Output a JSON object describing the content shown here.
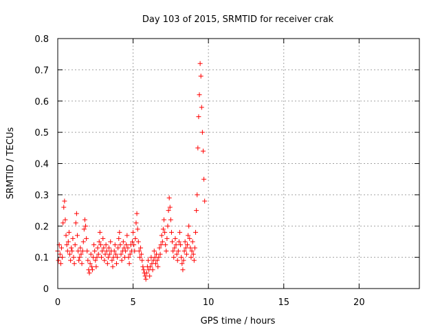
{
  "chart_data": {
    "type": "scatter",
    "title": "Day 103 of 2015, SRMTID for receiver crak",
    "xlabel": "GPS time / hours",
    "ylabel": "SRMTID / TECUs",
    "xlim": [
      0,
      24
    ],
    "ylim": [
      0,
      0.8
    ],
    "xticks": [
      0,
      5,
      10,
      15,
      20
    ],
    "yticks": [
      0,
      0.1,
      0.2,
      0.3,
      0.4,
      0.5,
      0.6,
      0.7,
      0.8
    ],
    "xtick_labels": [
      "0",
      "5",
      "10",
      "15",
      "20"
    ],
    "ytick_labels": [
      "0",
      "0.1",
      "0.2",
      "0.3",
      "0.4",
      "0.5",
      "0.6",
      "0.7",
      "0.8"
    ],
    "grid": true,
    "marker": "+",
    "marker_color": "#ff0000",
    "series": [
      {
        "name": "SRMTID",
        "points": [
          [
            0.0,
            0.12
          ],
          [
            0.05,
            0.09
          ],
          [
            0.1,
            0.14
          ],
          [
            0.15,
            0.11
          ],
          [
            0.2,
            0.08
          ],
          [
            0.25,
            0.13
          ],
          [
            0.3,
            0.1
          ],
          [
            0.35,
            0.21
          ],
          [
            0.4,
            0.26
          ],
          [
            0.45,
            0.28
          ],
          [
            0.5,
            0.22
          ],
          [
            0.55,
            0.17
          ],
          [
            0.6,
            0.14
          ],
          [
            0.65,
            0.12
          ],
          [
            0.7,
            0.15
          ],
          [
            0.75,
            0.18
          ],
          [
            0.8,
            0.11
          ],
          [
            0.85,
            0.09
          ],
          [
            0.9,
            0.13
          ],
          [
            0.95,
            0.12
          ],
          [
            1.0,
            0.16
          ],
          [
            1.05,
            0.1
          ],
          [
            1.1,
            0.08
          ],
          [
            1.15,
            0.14
          ],
          [
            1.2,
            0.21
          ],
          [
            1.25,
            0.24
          ],
          [
            1.3,
            0.17
          ],
          [
            1.35,
            0.12
          ],
          [
            1.4,
            0.09
          ],
          [
            1.45,
            0.1
          ],
          [
            1.5,
            0.13
          ],
          [
            1.55,
            0.11
          ],
          [
            1.6,
            0.08
          ],
          [
            1.65,
            0.12
          ],
          [
            1.7,
            0.15
          ],
          [
            1.75,
            0.19
          ],
          [
            1.8,
            0.22
          ],
          [
            1.85,
            0.2
          ],
          [
            1.9,
            0.16
          ],
          [
            1.95,
            0.12
          ],
          [
            2.0,
            0.09
          ],
          [
            2.05,
            0.06
          ],
          [
            2.1,
            0.05
          ],
          [
            2.15,
            0.08
          ],
          [
            2.2,
            0.11
          ],
          [
            2.25,
            0.07
          ],
          [
            2.3,
            0.06
          ],
          [
            2.35,
            0.1
          ],
          [
            2.4,
            0.14
          ],
          [
            2.45,
            0.12
          ],
          [
            2.5,
            0.09
          ],
          [
            2.55,
            0.07
          ],
          [
            2.6,
            0.1
          ],
          [
            2.65,
            0.13
          ],
          [
            2.7,
            0.11
          ],
          [
            2.75,
            0.15
          ],
          [
            2.8,
            0.18
          ],
          [
            2.85,
            0.14
          ],
          [
            2.9,
            0.1
          ],
          [
            2.95,
            0.12
          ],
          [
            3.0,
            0.16
          ],
          [
            3.05,
            0.13
          ],
          [
            3.1,
            0.09
          ],
          [
            3.15,
            0.11
          ],
          [
            3.2,
            0.14
          ],
          [
            3.25,
            0.12
          ],
          [
            3.3,
            0.08
          ],
          [
            3.35,
            0.1
          ],
          [
            3.4,
            0.13
          ],
          [
            3.45,
            0.11
          ],
          [
            3.5,
            0.15
          ],
          [
            3.55,
            0.12
          ],
          [
            3.6,
            0.09
          ],
          [
            3.65,
            0.07
          ],
          [
            3.7,
            0.1
          ],
          [
            3.75,
            0.12
          ],
          [
            3.8,
            0.14
          ],
          [
            3.85,
            0.11
          ],
          [
            3.9,
            0.08
          ],
          [
            3.95,
            0.1
          ],
          [
            4.0,
            0.13
          ],
          [
            4.05,
            0.16
          ],
          [
            4.1,
            0.18
          ],
          [
            4.15,
            0.14
          ],
          [
            4.2,
            0.11
          ],
          [
            4.25,
            0.09
          ],
          [
            4.3,
            0.12
          ],
          [
            4.35,
            0.15
          ],
          [
            4.4,
            0.13
          ],
          [
            4.45,
            0.1
          ],
          [
            4.5,
            0.12
          ],
          [
            4.55,
            0.14
          ],
          [
            4.6,
            0.17
          ],
          [
            4.65,
            0.13
          ],
          [
            4.7,
            0.1
          ],
          [
            4.75,
            0.08
          ],
          [
            4.8,
            0.11
          ],
          [
            4.85,
            0.14
          ],
          [
            4.9,
            0.12
          ],
          [
            4.95,
            0.15
          ],
          [
            5.0,
            0.18
          ],
          [
            5.05,
            0.14
          ],
          [
            5.1,
            0.12
          ],
          [
            5.15,
            0.16
          ],
          [
            5.2,
            0.21
          ],
          [
            5.25,
            0.24
          ],
          [
            5.3,
            0.19
          ],
          [
            5.35,
            0.15
          ],
          [
            5.4,
            0.12
          ],
          [
            5.45,
            0.1
          ],
          [
            5.5,
            0.13
          ],
          [
            5.55,
            0.11
          ],
          [
            5.6,
            0.09
          ],
          [
            5.65,
            0.07
          ],
          [
            5.7,
            0.06
          ],
          [
            5.75,
            0.05
          ],
          [
            5.8,
            0.04
          ],
          [
            5.85,
            0.03
          ],
          [
            5.9,
            0.05
          ],
          [
            5.95,
            0.07
          ],
          [
            6.0,
            0.09
          ],
          [
            6.05,
            0.06
          ],
          [
            6.1,
            0.04
          ],
          [
            6.15,
            0.07
          ],
          [
            6.2,
            0.1
          ],
          [
            6.25,
            0.08
          ],
          [
            6.3,
            0.06
          ],
          [
            6.35,
            0.09
          ],
          [
            6.4,
            0.12
          ],
          [
            6.45,
            0.1
          ],
          [
            6.5,
            0.08
          ],
          [
            6.55,
            0.11
          ],
          [
            6.6,
            0.09
          ],
          [
            6.65,
            0.07
          ],
          [
            6.7,
            0.1
          ],
          [
            6.75,
            0.13
          ],
          [
            6.8,
            0.11
          ],
          [
            6.85,
            0.14
          ],
          [
            6.9,
            0.17
          ],
          [
            6.95,
            0.15
          ],
          [
            7.0,
            0.19
          ],
          [
            7.05,
            0.22
          ],
          [
            7.1,
            0.18
          ],
          [
            7.15,
            0.14
          ],
          [
            7.2,
            0.12
          ],
          [
            7.25,
            0.16
          ],
          [
            7.3,
            0.2
          ],
          [
            7.35,
            0.25
          ],
          [
            7.4,
            0.29
          ],
          [
            7.45,
            0.26
          ],
          [
            7.5,
            0.22
          ],
          [
            7.55,
            0.18
          ],
          [
            7.6,
            0.15
          ],
          [
            7.65,
            0.12
          ],
          [
            7.7,
            0.1
          ],
          [
            7.75,
            0.13
          ],
          [
            7.8,
            0.16
          ],
          [
            7.85,
            0.14
          ],
          [
            7.9,
            0.11
          ],
          [
            7.95,
            0.09
          ],
          [
            8.0,
            0.12
          ],
          [
            8.05,
            0.15
          ],
          [
            8.1,
            0.18
          ],
          [
            8.15,
            0.14
          ],
          [
            8.2,
            0.1
          ],
          [
            8.25,
            0.08
          ],
          [
            8.3,
            0.06
          ],
          [
            8.35,
            0.09
          ],
          [
            8.4,
            0.12
          ],
          [
            8.45,
            0.15
          ],
          [
            8.5,
            0.13
          ],
          [
            8.55,
            0.11
          ],
          [
            8.6,
            0.14
          ],
          [
            8.65,
            0.17
          ],
          [
            8.7,
            0.2
          ],
          [
            8.75,
            0.16
          ],
          [
            8.8,
            0.13
          ],
          [
            8.85,
            0.1
          ],
          [
            8.9,
            0.12
          ],
          [
            8.95,
            0.15
          ],
          [
            9.0,
            0.11
          ],
          [
            9.05,
            0.09
          ],
          [
            9.1,
            0.13
          ],
          [
            9.15,
            0.18
          ],
          [
            9.2,
            0.25
          ],
          [
            9.25,
            0.3
          ],
          [
            9.3,
            0.45
          ],
          [
            9.35,
            0.55
          ],
          [
            9.4,
            0.62
          ],
          [
            9.45,
            0.72
          ],
          [
            9.5,
            0.68
          ],
          [
            9.55,
            0.58
          ],
          [
            9.6,
            0.5
          ],
          [
            9.65,
            0.44
          ],
          [
            9.7,
            0.35
          ],
          [
            9.75,
            0.28
          ]
        ]
      }
    ]
  }
}
